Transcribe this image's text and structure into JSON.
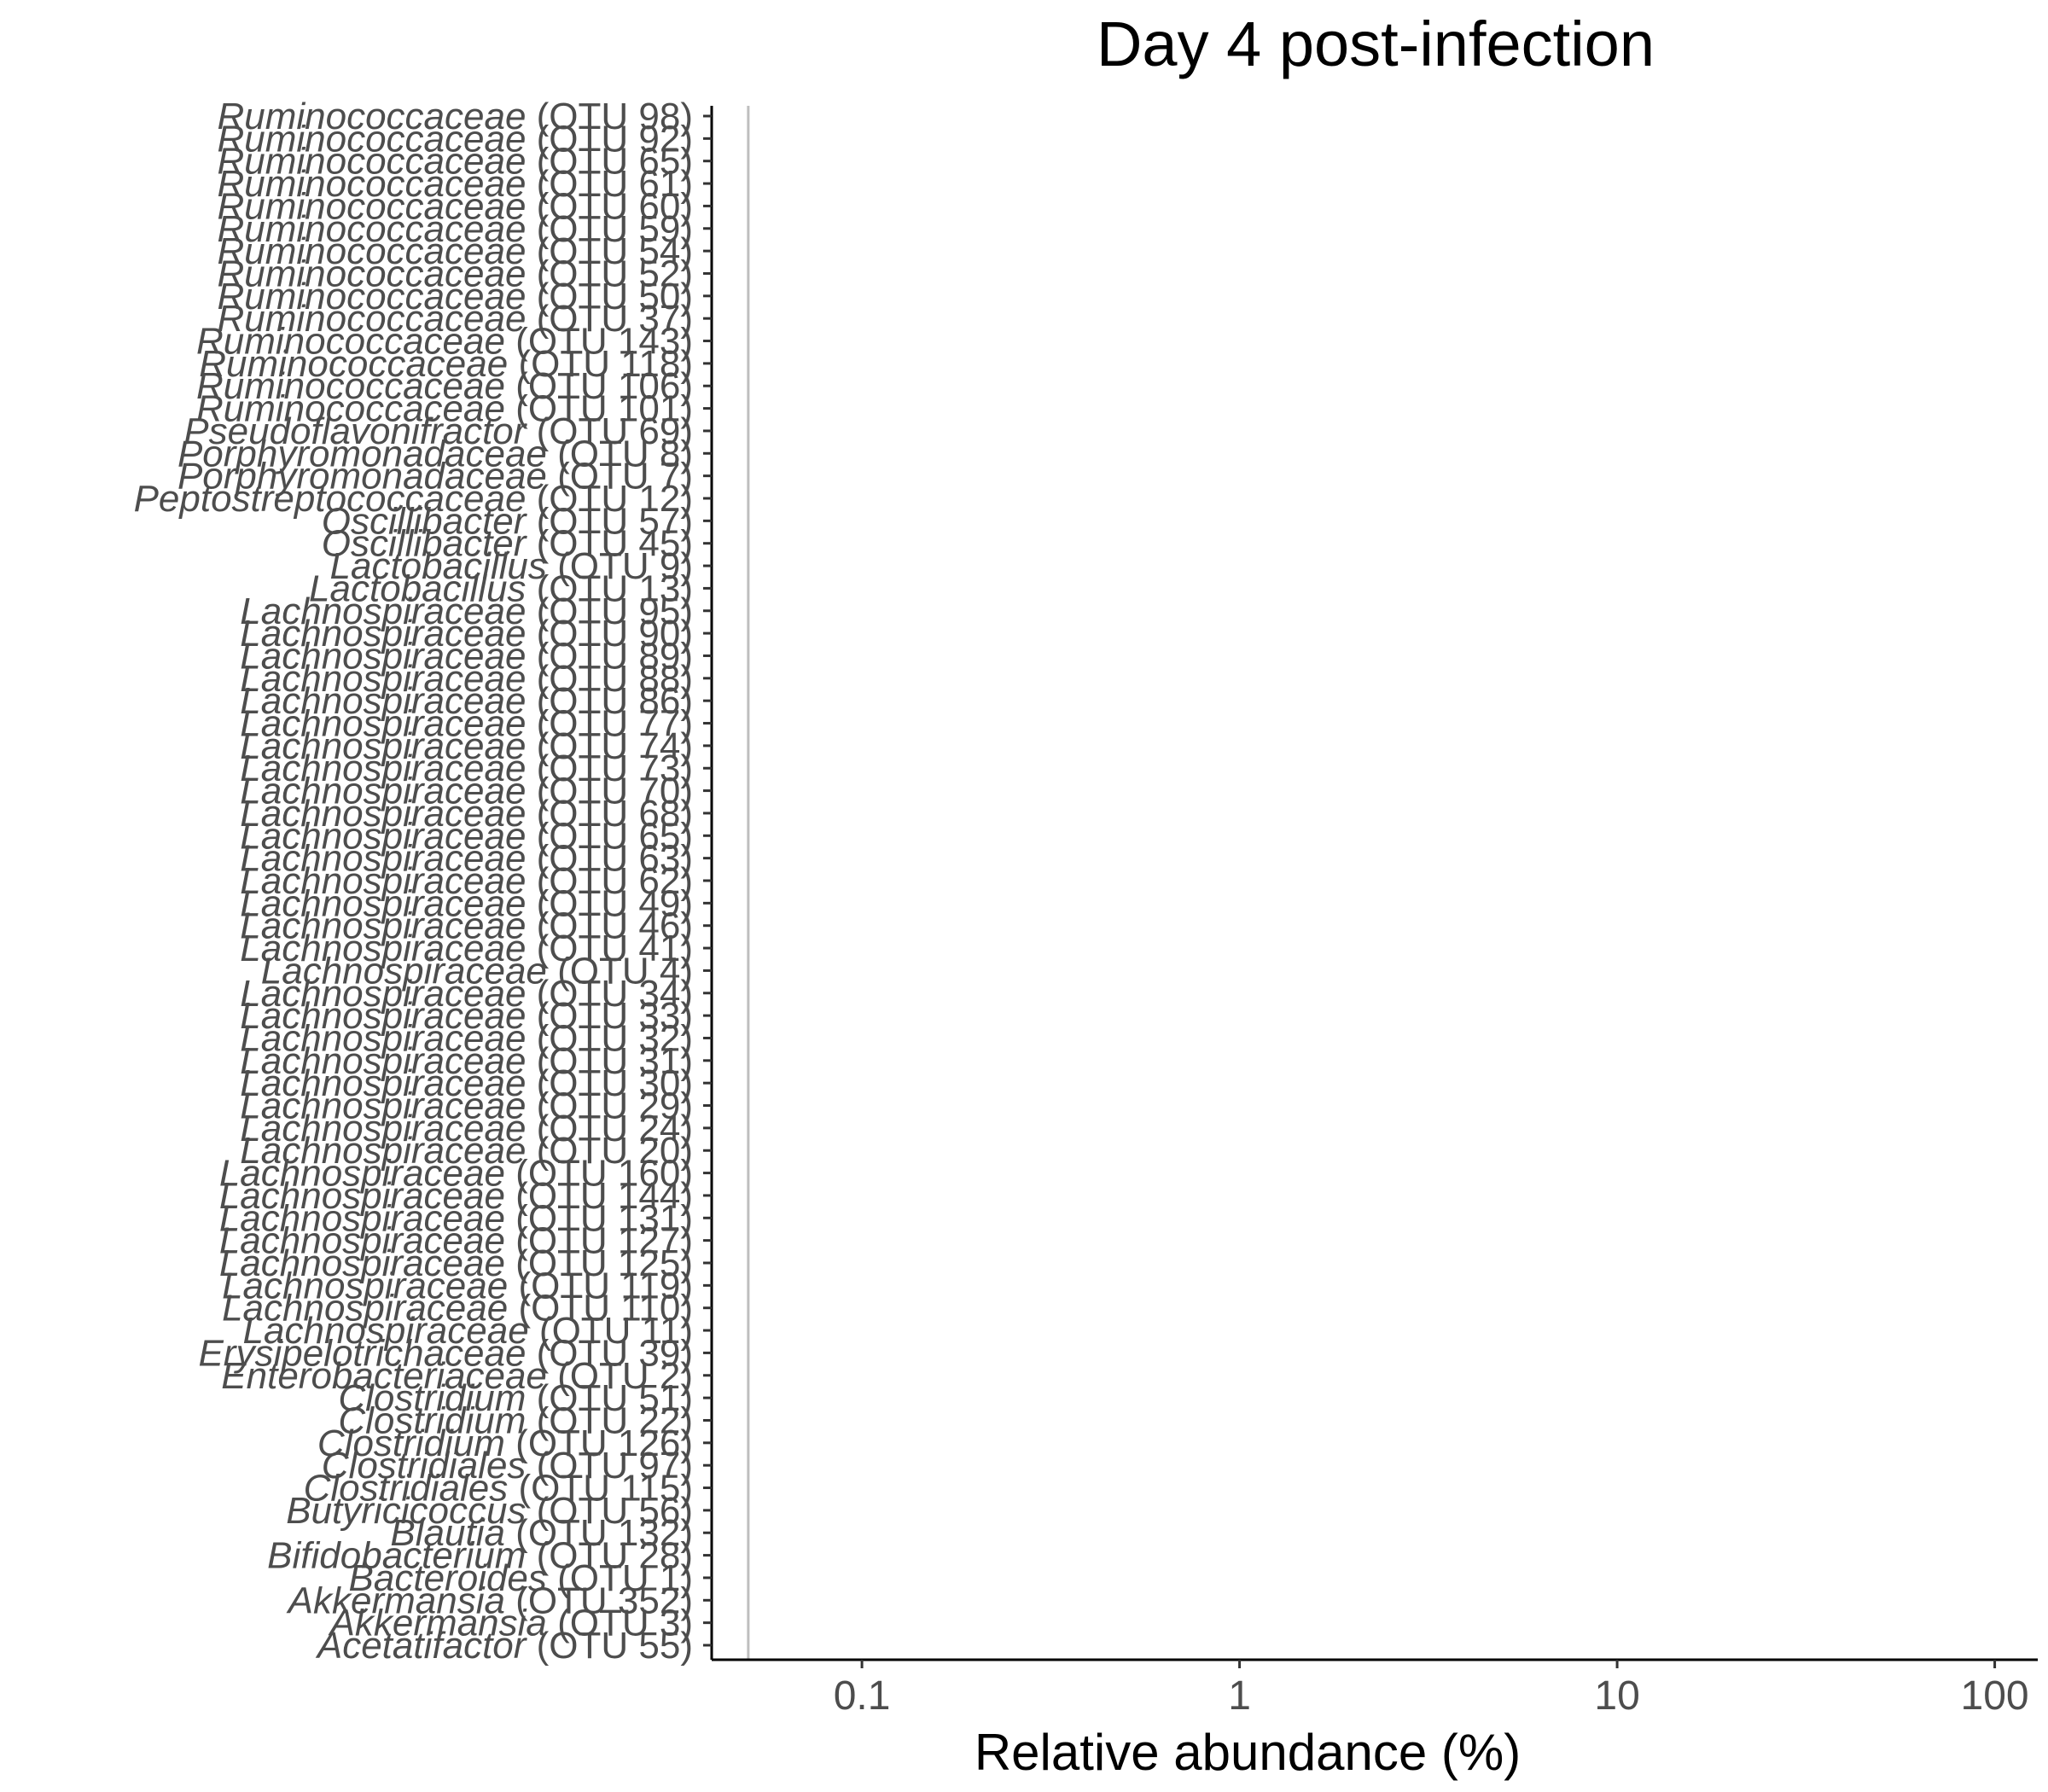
{
  "chart_data": {
    "type": "scatter",
    "title": "Day 4 post-infection",
    "xlabel": "Relative abundance (%)",
    "ylabel": "",
    "x_scale": "log10",
    "xlim": [
      0.04,
      130
    ],
    "x_ticks": [
      {
        "value": 0.1,
        "label": "0.1"
      },
      {
        "value": 1,
        "label": "1"
      },
      {
        "value": 10,
        "label": "10"
      },
      {
        "value": 100,
        "label": "100"
      }
    ],
    "reference_line": {
      "axis": "x",
      "value": 0.05,
      "color": "#bebebe"
    },
    "grid": false,
    "categories": [
      {
        "taxon": "Ruminococcaceae",
        "otu": "(OTU 98)"
      },
      {
        "taxon": "Ruminococcaceae",
        "otu": "(OTU 92)"
      },
      {
        "taxon": "Ruminococcaceae",
        "otu": "(OTU 65)"
      },
      {
        "taxon": "Ruminococcaceae",
        "otu": "(OTU 61)"
      },
      {
        "taxon": "Ruminococcaceae",
        "otu": "(OTU 60)"
      },
      {
        "taxon": "Ruminococcaceae",
        "otu": "(OTU 59)"
      },
      {
        "taxon": "Ruminococcaceae",
        "otu": "(OTU 54)"
      },
      {
        "taxon": "Ruminococcaceae",
        "otu": "(OTU 52)"
      },
      {
        "taxon": "Ruminococcaceae",
        "otu": "(OTU 50)"
      },
      {
        "taxon": "Ruminococcaceae",
        "otu": "(OTU 37)"
      },
      {
        "taxon": "Ruminococcaceae",
        "otu": "(OTU 143)"
      },
      {
        "taxon": "Ruminococcaceae",
        "otu": "(OTU 118)"
      },
      {
        "taxon": "Ruminococcaceae",
        "otu": "(OTU 106)"
      },
      {
        "taxon": "Ruminococcaceae",
        "otu": "(OTU 101)"
      },
      {
        "taxon": "Pseudoflavonifractor",
        "otu": "(OTU 69)"
      },
      {
        "taxon": "Porphyromonadaceae",
        "otu": "(OTU 8)"
      },
      {
        "taxon": "Porphyromonadaceae",
        "otu": "(OTU 7)"
      },
      {
        "taxon": "Peptostreptococcaceae",
        "otu": "(OTU 12)"
      },
      {
        "taxon": "Oscillibacter",
        "otu": "(OTU 57)"
      },
      {
        "taxon": "Oscillibacter",
        "otu": "(OTU 45)"
      },
      {
        "taxon": "Lactobacillus",
        "otu": "(OTU 9)"
      },
      {
        "taxon": "Lactobacillus",
        "otu": "(OTU 13)"
      },
      {
        "taxon": "Lachnospiraceae",
        "otu": "(OTU 95)"
      },
      {
        "taxon": "Lachnospiraceae",
        "otu": "(OTU 90)"
      },
      {
        "taxon": "Lachnospiraceae",
        "otu": "(OTU 89)"
      },
      {
        "taxon": "Lachnospiraceae",
        "otu": "(OTU 88)"
      },
      {
        "taxon": "Lachnospiraceae",
        "otu": "(OTU 86)"
      },
      {
        "taxon": "Lachnospiraceae",
        "otu": "(OTU 77)"
      },
      {
        "taxon": "Lachnospiraceae",
        "otu": "(OTU 74)"
      },
      {
        "taxon": "Lachnospiraceae",
        "otu": "(OTU 73)"
      },
      {
        "taxon": "Lachnospiraceae",
        "otu": "(OTU 70)"
      },
      {
        "taxon": "Lachnospiraceae",
        "otu": "(OTU 68)"
      },
      {
        "taxon": "Lachnospiraceae",
        "otu": "(OTU 65)"
      },
      {
        "taxon": "Lachnospiraceae",
        "otu": "(OTU 63)"
      },
      {
        "taxon": "Lachnospiraceae",
        "otu": "(OTU 62)"
      },
      {
        "taxon": "Lachnospiraceae",
        "otu": "(OTU 49)"
      },
      {
        "taxon": "Lachnospiraceae",
        "otu": "(OTU 46)"
      },
      {
        "taxon": "Lachnospiraceae",
        "otu": "(OTU 41)"
      },
      {
        "taxon": "Lachnospiraceae",
        "otu": "(OTU 4)"
      },
      {
        "taxon": "Lachnospiraceae",
        "otu": "(OTU 34)"
      },
      {
        "taxon": "Lachnospiraceae",
        "otu": "(OTU 33)"
      },
      {
        "taxon": "Lachnospiraceae",
        "otu": "(OTU 32)"
      },
      {
        "taxon": "Lachnospiraceae",
        "otu": "(OTU 31)"
      },
      {
        "taxon": "Lachnospiraceae",
        "otu": "(OTU 30)"
      },
      {
        "taxon": "Lachnospiraceae",
        "otu": "(OTU 29)"
      },
      {
        "taxon": "Lachnospiraceae",
        "otu": "(OTU 24)"
      },
      {
        "taxon": "Lachnospiraceae",
        "otu": "(OTU 20)"
      },
      {
        "taxon": "Lachnospiraceae",
        "otu": "(OTU 160)"
      },
      {
        "taxon": "Lachnospiraceae",
        "otu": "(OTU 144)"
      },
      {
        "taxon": "Lachnospiraceae",
        "otu": "(OTU 131)"
      },
      {
        "taxon": "Lachnospiraceae",
        "otu": "(OTU 127)"
      },
      {
        "taxon": "Lachnospiraceae",
        "otu": "(OTU 125)"
      },
      {
        "taxon": "Lachnospiraceae",
        "otu": "(OTU 119)"
      },
      {
        "taxon": "Lachnospiraceae",
        "otu": "(OTU 110)"
      },
      {
        "taxon": "Lachnospiraceae",
        "otu": "(OTU 11)"
      },
      {
        "taxon": "Erysipelotrichaceae",
        "otu": "(OTU 39)"
      },
      {
        "taxon": "Enterobacteriaceae",
        "otu": "(OTU 2)"
      },
      {
        "taxon": "Clostridium",
        "otu": "(OTU 51)"
      },
      {
        "taxon": "Clostridium",
        "otu": "(OTU 22)"
      },
      {
        "taxon": "Clostridium",
        "otu": "(OTU 126)"
      },
      {
        "taxon": "Clostridiales",
        "otu": "(OTU 97)"
      },
      {
        "taxon": "Clostridiales",
        "otu": "(OTU 115)"
      },
      {
        "taxon": "Butyricicoccus",
        "otu": "(OTU 56)"
      },
      {
        "taxon": "Blautia",
        "otu": "(OTU 132)"
      },
      {
        "taxon": "Bifidobacterium",
        "otu": "(OTU 28)"
      },
      {
        "taxon": "Bacteroides",
        "otu": "(OTU 1)"
      },
      {
        "taxon": "Akkermansia",
        "otu": "(OTU 352)"
      },
      {
        "taxon": "Akkermansia",
        "otu": "(OTU 3)"
      },
      {
        "taxon": "Acetatifactor",
        "otu": "(OTU 55)"
      }
    ],
    "series": []
  }
}
